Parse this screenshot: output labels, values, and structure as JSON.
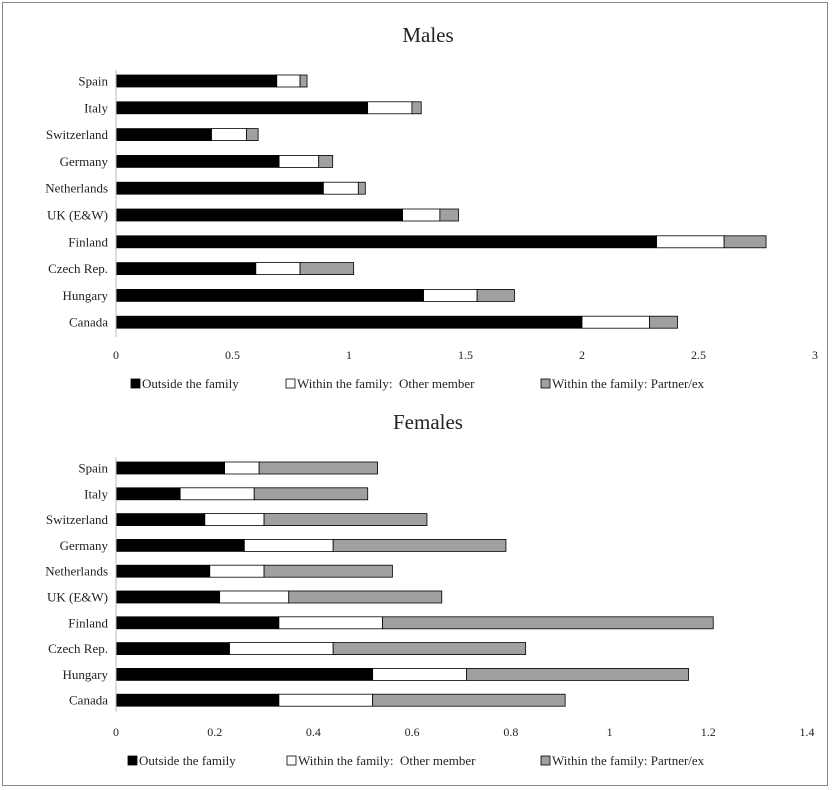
{
  "colors": {
    "outside": "#000000",
    "other_member": "#ffffff",
    "partner": "#a0a0a0"
  },
  "chart_data": [
    {
      "type": "bar",
      "orientation": "horizontal",
      "stacked": true,
      "title": "Males",
      "categories": [
        "Spain",
        "Italy",
        "Switzerland",
        "Germany",
        "Netherlands",
        "UK (E&W)",
        "Finland",
        "Czech Rep.",
        "Hungary",
        "Canada"
      ],
      "series": [
        {
          "name": "Outside the family",
          "color": "#000000",
          "values": [
            0.69,
            1.08,
            0.41,
            0.7,
            0.89,
            1.23,
            2.32,
            0.6,
            1.32,
            2.0
          ]
        },
        {
          "name": "Within the family:  Other member",
          "color": "#ffffff",
          "values": [
            0.1,
            0.19,
            0.15,
            0.17,
            0.15,
            0.16,
            0.29,
            0.19,
            0.23,
            0.29
          ]
        },
        {
          "name": "Within the family: Partner/ex",
          "color": "#a0a0a0",
          "values": [
            0.03,
            0.04,
            0.05,
            0.06,
            0.03,
            0.08,
            0.18,
            0.23,
            0.16,
            0.12
          ]
        }
      ],
      "xlim": [
        0,
        3
      ],
      "xticks": [
        "0",
        "0.5",
        "1",
        "1.5",
        "2",
        "2.5",
        "3"
      ],
      "xtick_values": [
        0,
        0.5,
        1,
        1.5,
        2,
        2.5,
        3
      ],
      "legend_position": "bottom",
      "grid": false
    },
    {
      "type": "bar",
      "orientation": "horizontal",
      "stacked": true,
      "title": "Females",
      "categories": [
        "Spain",
        "Italy",
        "Switzerland",
        "Germany",
        "Netherlands",
        "UK (E&W)",
        "Finland",
        "Czech Rep.",
        "Hungary",
        "Canada"
      ],
      "series": [
        {
          "name": "Outside the family",
          "color": "#000000",
          "values": [
            0.22,
            0.13,
            0.18,
            0.26,
            0.19,
            0.21,
            0.33,
            0.23,
            0.52,
            0.33
          ]
        },
        {
          "name": "Within the family:  Other member",
          "color": "#ffffff",
          "values": [
            0.07,
            0.15,
            0.12,
            0.18,
            0.11,
            0.14,
            0.21,
            0.21,
            0.19,
            0.19
          ]
        },
        {
          "name": "Within the family: Partner/ex",
          "color": "#a0a0a0",
          "values": [
            0.24,
            0.23,
            0.33,
            0.35,
            0.26,
            0.31,
            0.67,
            0.39,
            0.45,
            0.39
          ]
        }
      ],
      "xlim": [
        0,
        1.4
      ],
      "xticks": [
        "0",
        "0.2",
        "0.4",
        "0.6",
        "0.8",
        "1",
        "1.2",
        "1.4"
      ],
      "xtick_values": [
        0,
        0.2,
        0.4,
        0.6,
        0.8,
        1,
        1.2,
        1.4
      ],
      "legend_position": "bottom",
      "grid": false
    }
  ]
}
